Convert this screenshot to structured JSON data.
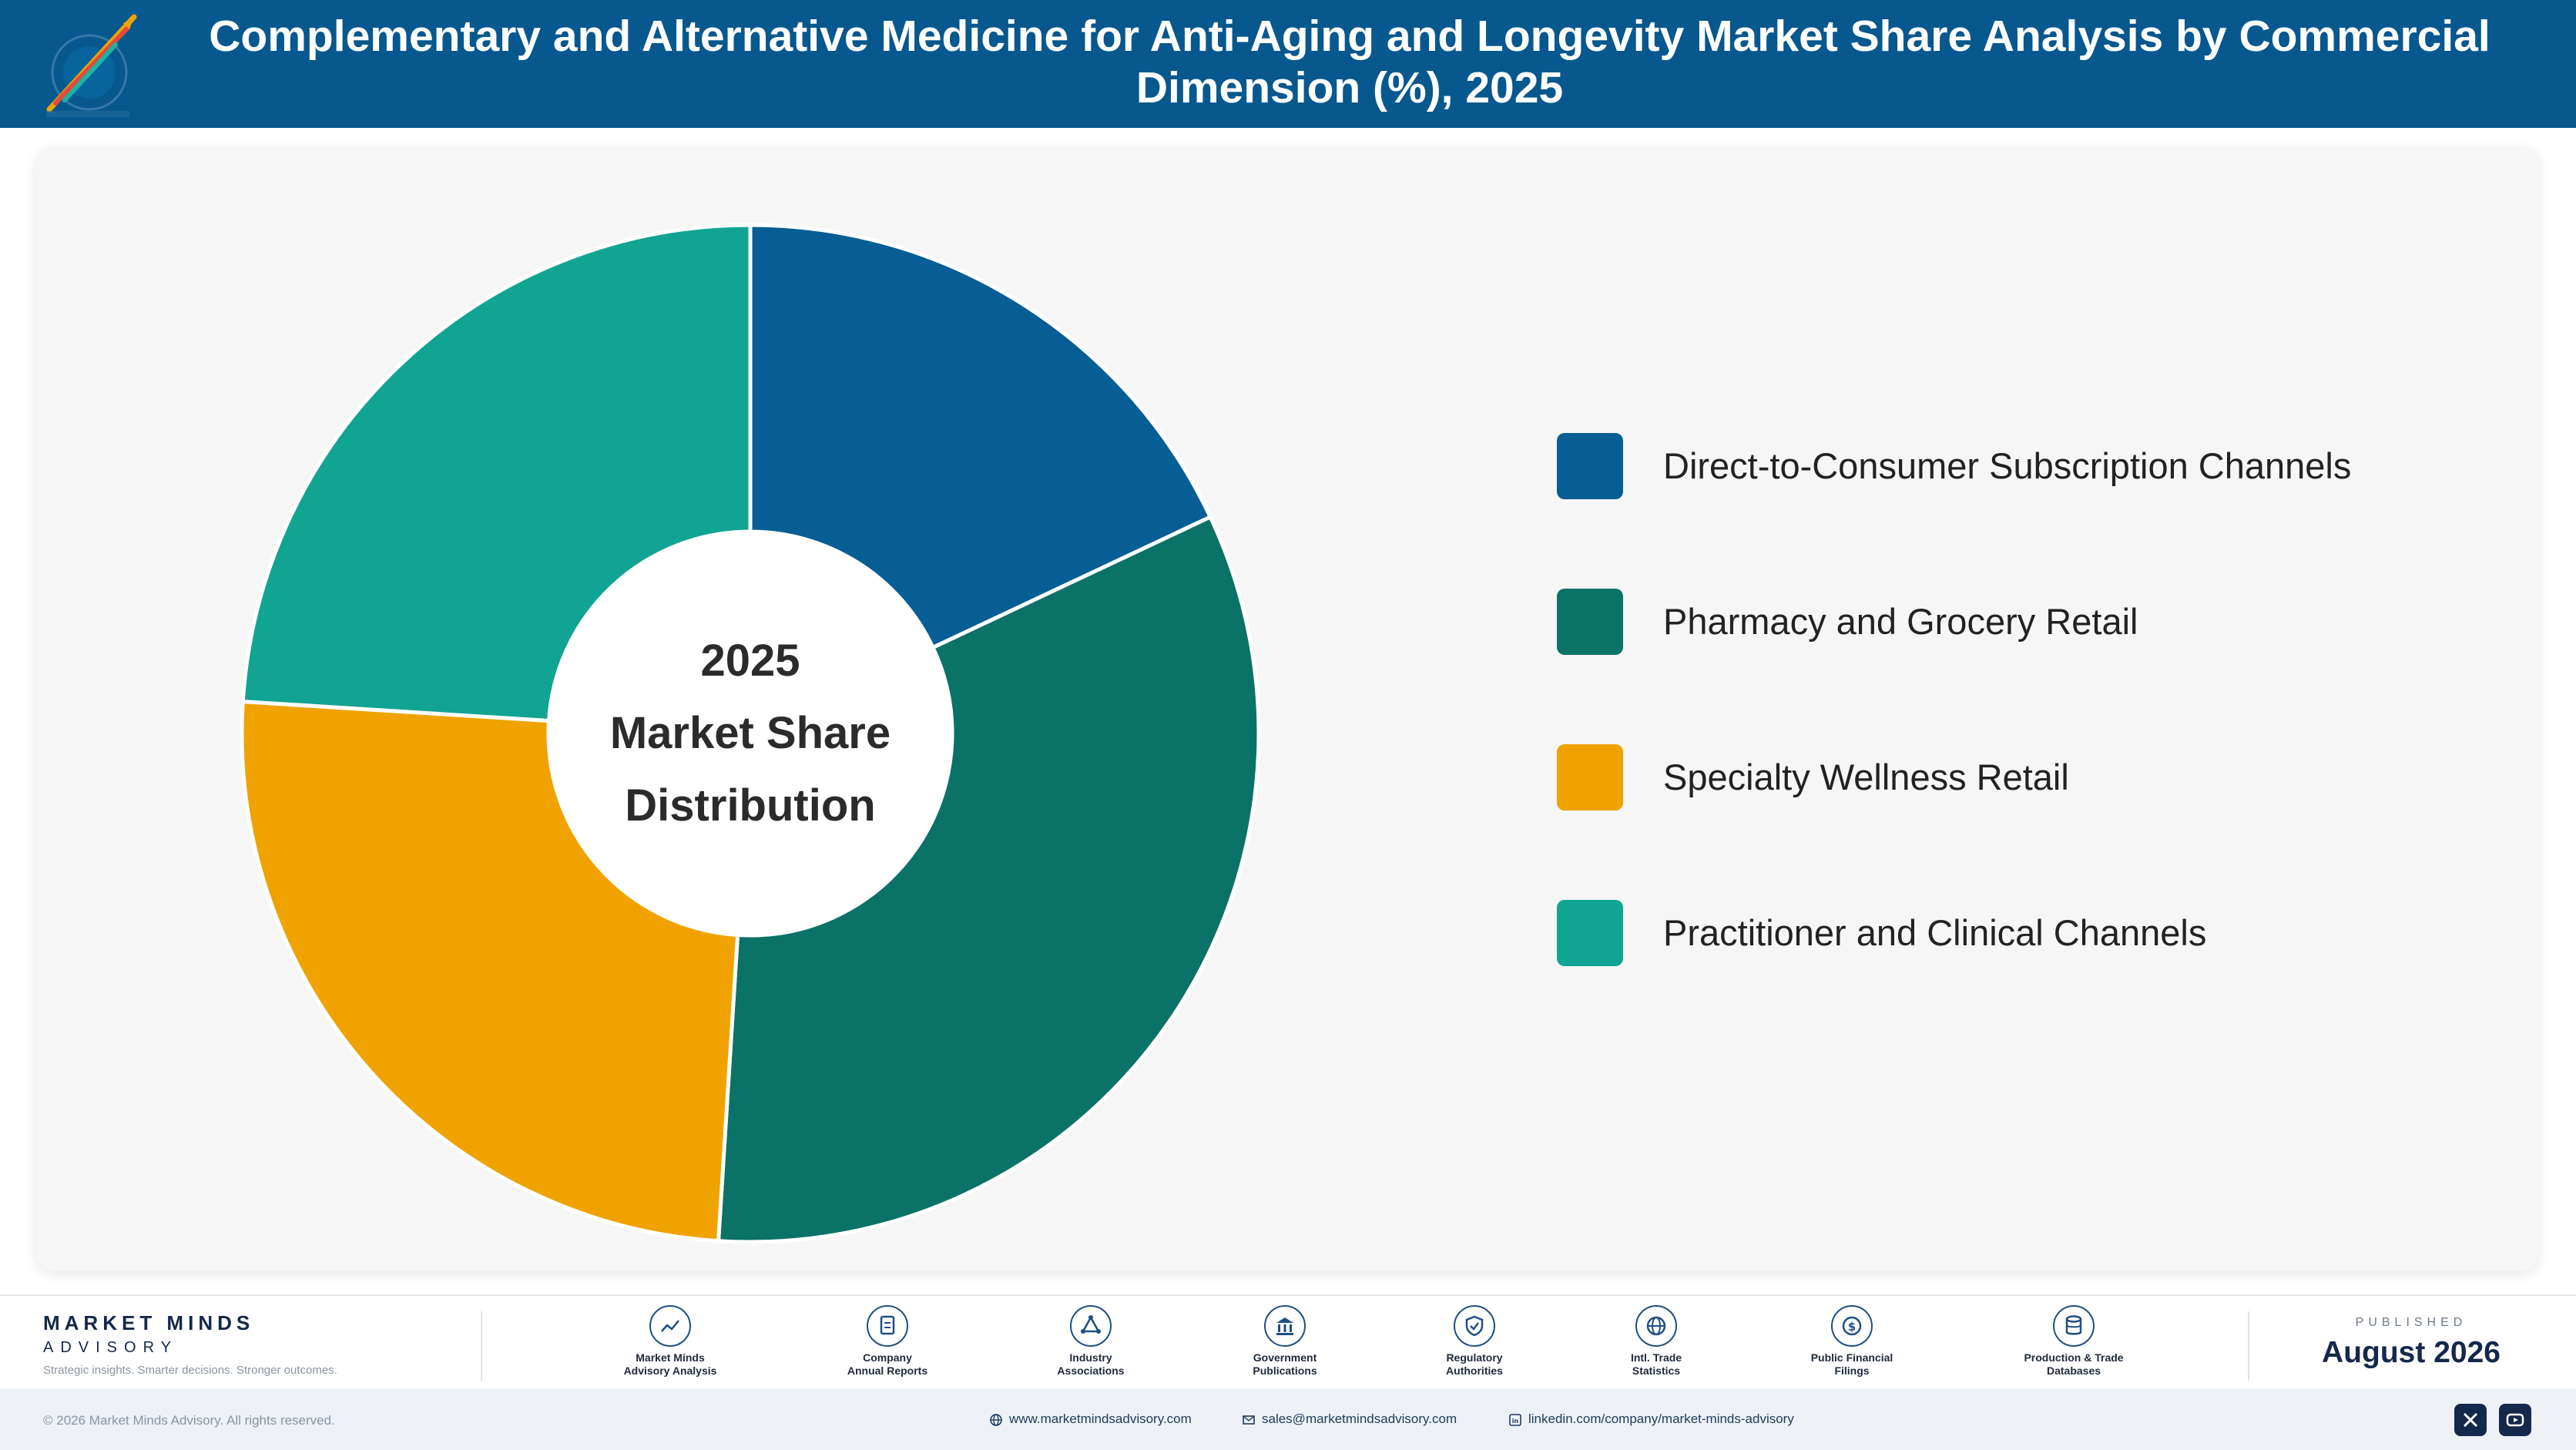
{
  "header": {
    "title": "Complementary and Alternative Medicine for Anti-Aging and Longevity Market Share Analysis by Commercial Dimension (%), 2025"
  },
  "chart_data": {
    "type": "pie",
    "donut": true,
    "center_text": [
      "2025",
      "Market Share",
      "Distribution"
    ],
    "categories": [
      "Direct-to-Consumer Subscription Channels",
      "Pharmacy and Grocery Retail",
      "Specialty Wellness Retail",
      "Practitioner and Clinical Channels"
    ],
    "values": [
      18,
      33,
      25,
      24
    ],
    "colors": [
      "#075e94",
      "#0b7268",
      "#f0a300",
      "#12a493"
    ],
    "legend_position": "right"
  },
  "footer": {
    "brand_name": "MARKET MINDS",
    "brand_sub": "ADVISORY",
    "brand_tagline": "Strategic insights. Smarter decisions. Stronger outcomes.",
    "sources": [
      {
        "label": "Market Minds\nAdvisory Analysis",
        "icon": "trend-line-icon"
      },
      {
        "label": "Company\nAnnual Reports",
        "icon": "document-icon"
      },
      {
        "label": "Industry\nAssociations",
        "icon": "network-icon"
      },
      {
        "label": "Government\nPublications",
        "icon": "government-building-icon"
      },
      {
        "label": "Regulatory\nAuthorities",
        "icon": "shield-check-icon"
      },
      {
        "label": "Intl. Trade\nStatistics",
        "icon": "globe-icon"
      },
      {
        "label": "Public Financial\nFilings",
        "icon": "dollar-coin-icon"
      },
      {
        "label": "Production & Trade\nDatabases",
        "icon": "database-icon"
      }
    ],
    "published_label": "PUBLISHED",
    "published_date": "August 2026"
  },
  "bottom_bar": {
    "copyright": "© 2026 Market Minds Advisory. All rights reserved.",
    "website": "www.marketmindsadvisory.com",
    "email": "sales@marketmindsadvisory.com",
    "linkedin": "linkedin.com/company/market-minds-advisory",
    "social_icons": [
      "x-icon",
      "youtube-icon"
    ]
  }
}
